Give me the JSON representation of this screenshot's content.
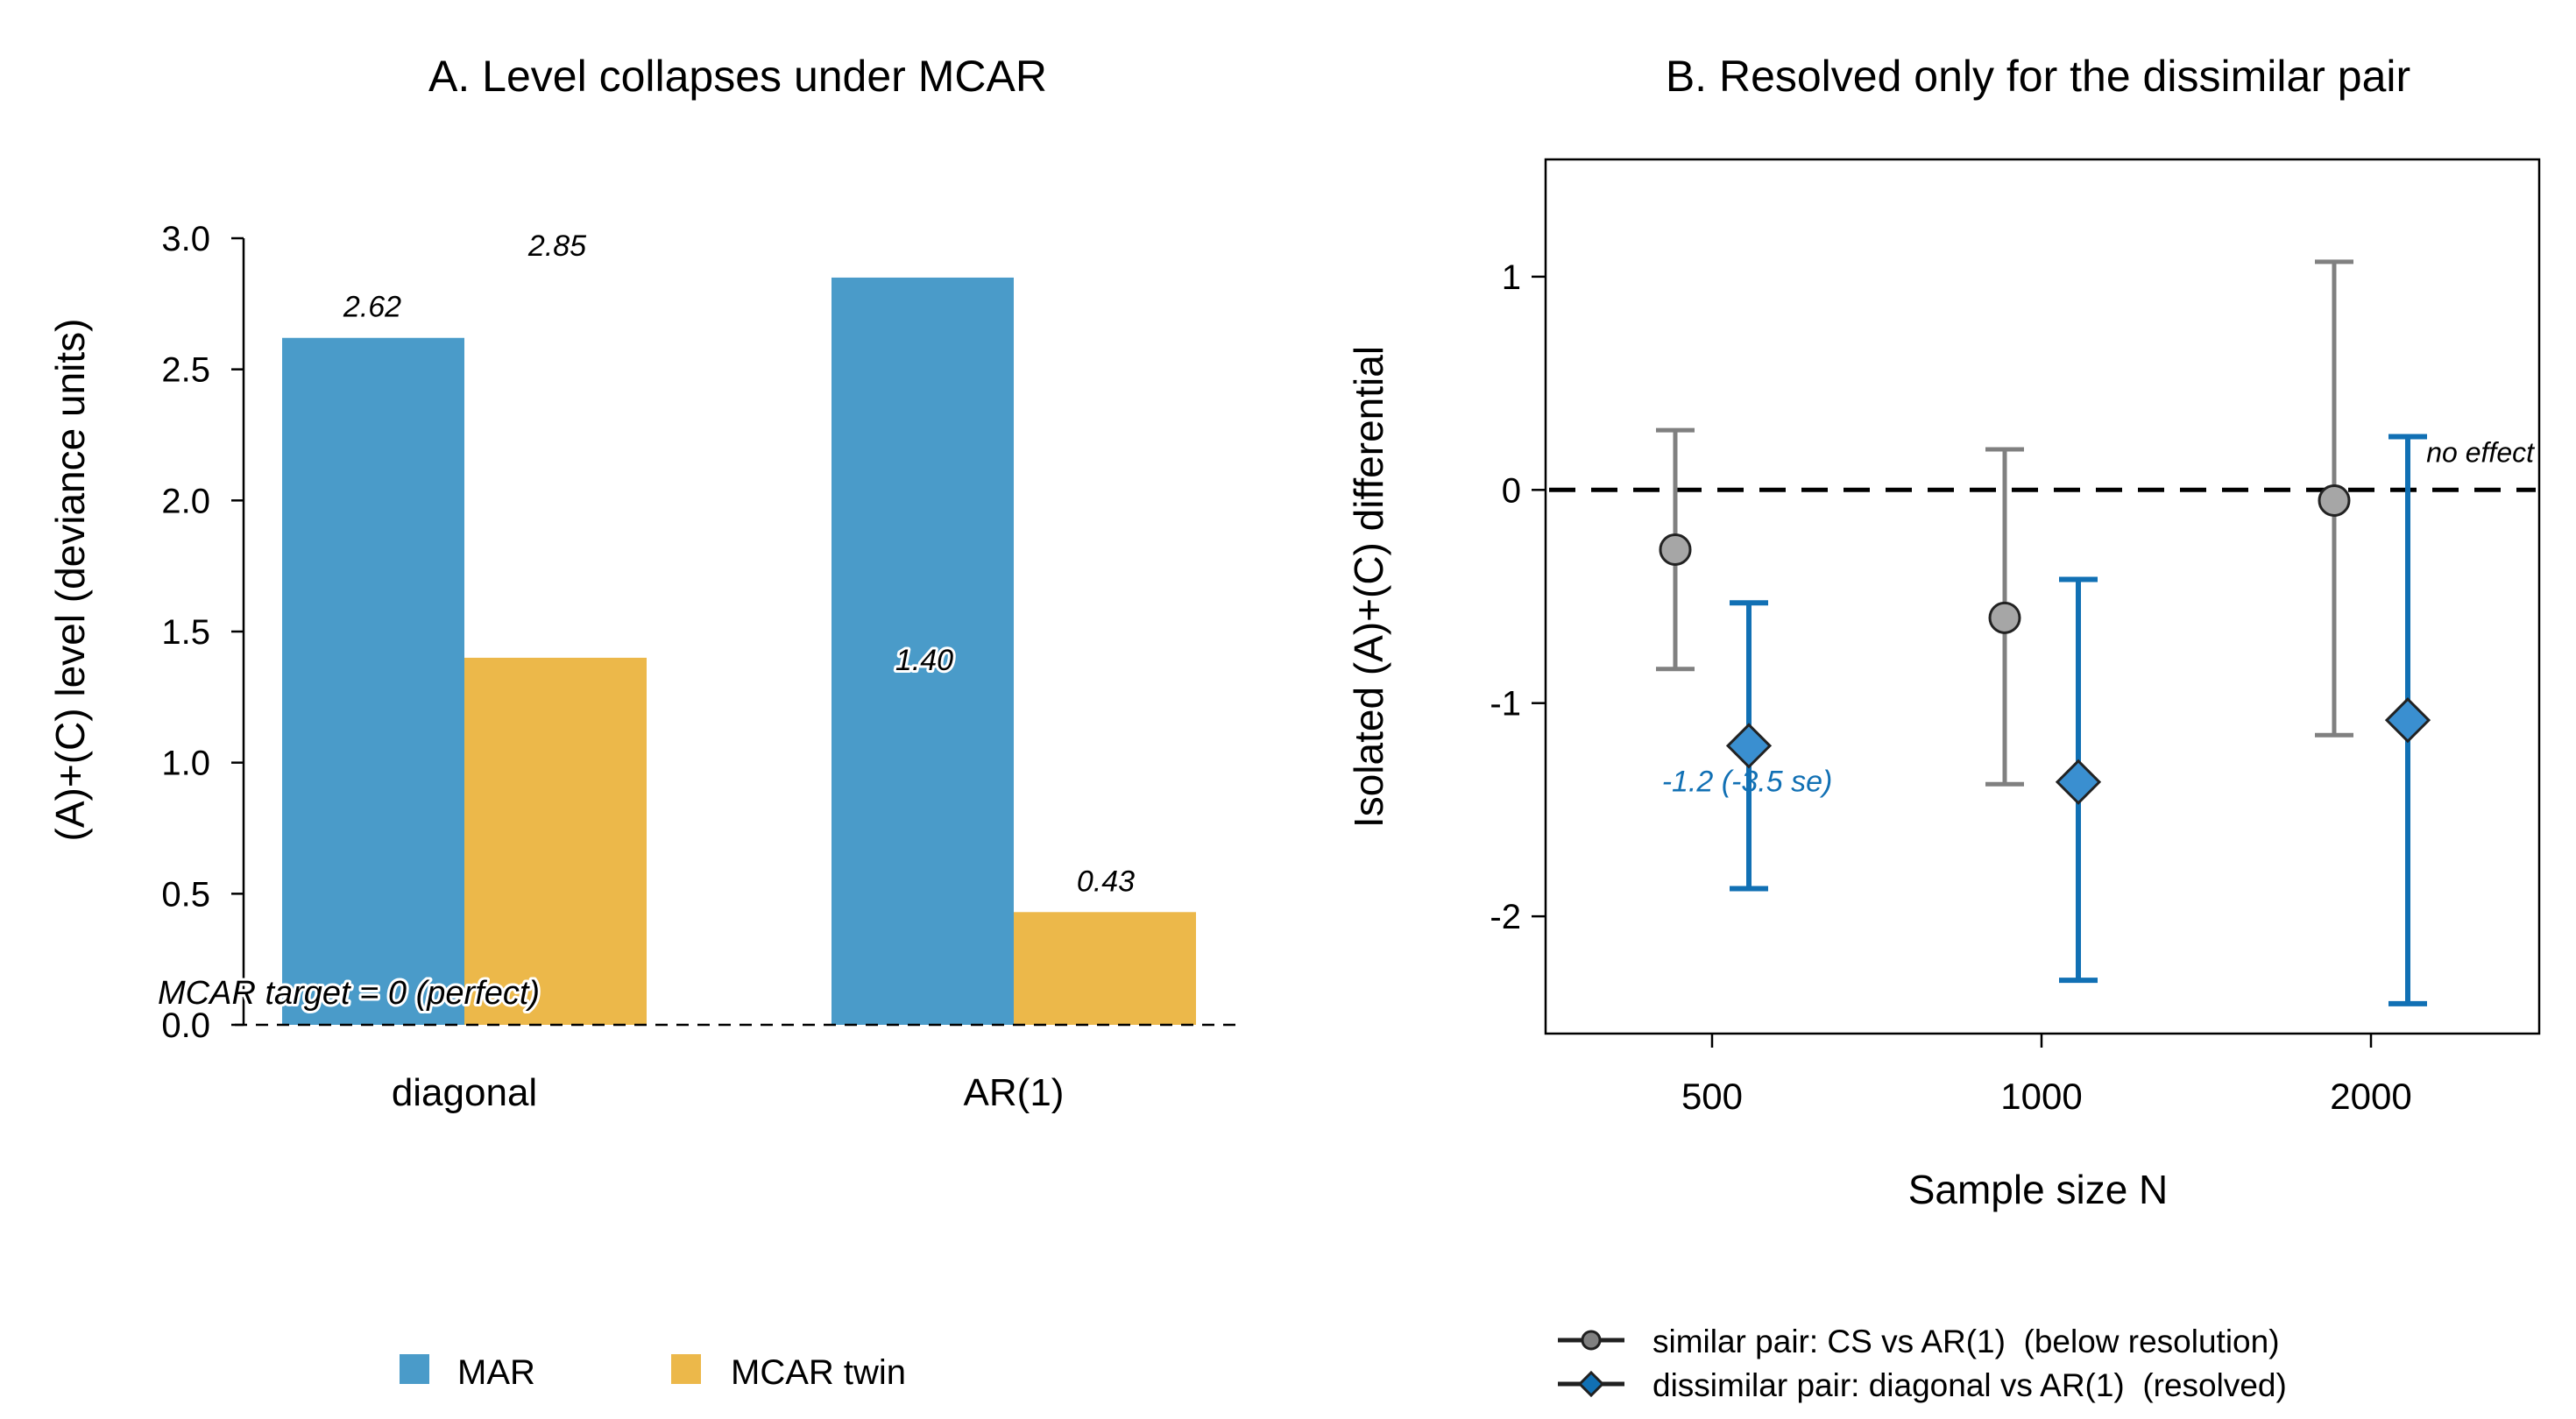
{
  "colors": {
    "mar": "#4a9bc9",
    "mcar": "#ecb84a",
    "similar": "#808080",
    "similar_marker": "#a6a6a6",
    "dissimilar": "#1170b4",
    "dissimilar_marker": "#3a8fd0"
  },
  "chart_data": [
    {
      "type": "bar",
      "title": "A. Level collapses under MCAR",
      "xlabel": "",
      "ylabel": "(A)+(C) level (deviance units)",
      "categories": [
        "diagonal",
        "AR(1)"
      ],
      "series": [
        {
          "name": "MAR",
          "values": [
            2.62,
            2.85
          ]
        },
        {
          "name": "MCAR twin",
          "values": [
            1.4,
            0.43
          ]
        }
      ],
      "ylim": [
        0,
        3.0
      ],
      "yticks": [
        "0.0",
        "0.5",
        "1.0",
        "1.5",
        "2.0",
        "2.5",
        "3.0"
      ],
      "value_labels": [
        "2.62",
        "2.85",
        "1.40",
        "0.43"
      ],
      "reference_line": {
        "y": 0,
        "label": "MCAR target = 0 (perfect)"
      },
      "legend_position": "bottom"
    },
    {
      "type": "scatter",
      "title": "B. Resolved only for the dissimilar pair",
      "xlabel": "Sample size N",
      "ylabel": "Isolated (A)+(C) differential",
      "categories": [
        "500",
        "1000",
        "2000"
      ],
      "ylim": [
        -2.55,
        1.55
      ],
      "yticks": [
        "-2",
        "-1",
        "0",
        "1"
      ],
      "series": [
        {
          "name": "similar pair: CS vs AR(1)  (below resolution)",
          "estimates": [
            -0.28,
            -0.6,
            -0.05
          ],
          "lower": [
            -0.84,
            -1.38,
            -1.15
          ],
          "upper": [
            0.28,
            0.19,
            1.07
          ]
        },
        {
          "name": "dissimilar pair: diagonal vs AR(1)  (resolved)",
          "estimates": [
            -1.2,
            -1.37,
            -1.08
          ],
          "lower": [
            -1.87,
            -2.3,
            -2.41
          ],
          "upper": [
            -0.53,
            -0.42,
            0.25
          ]
        }
      ],
      "reference_line": {
        "y": 0,
        "label": "no effect"
      },
      "annotation": "-1.2 (-3.5 se)",
      "legend_position": "bottom"
    }
  ]
}
